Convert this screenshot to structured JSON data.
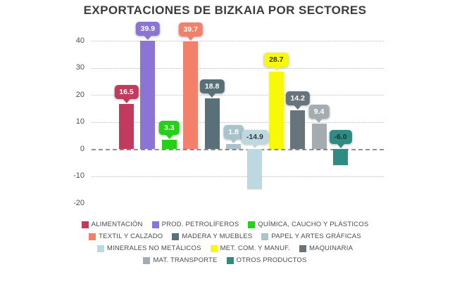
{
  "title": "EXPORTACIONES DE BIZKAIA POR SECTORES",
  "chart_data": {
    "type": "bar",
    "title": "EXPORTACIONES DE BIZKAIA POR SECTORES",
    "xlabel": "",
    "ylabel": "",
    "ylim": [
      -20,
      40
    ],
    "grid": "horizontal-dotted",
    "legend_position": "bottom",
    "yticks": [
      {
        "label": "40",
        "value": 40,
        "line": true
      },
      {
        "label": "30",
        "value": 30,
        "line": true
      },
      {
        "label": "20",
        "value": 20,
        "line": true
      },
      {
        "label": "10",
        "value": 10,
        "line": true
      },
      {
        "label": "0",
        "value": 0,
        "line": true
      },
      {
        "label": "-10",
        "value": -10,
        "line": true
      },
      {
        "label": "-20",
        "value": -20,
        "line": false
      }
    ],
    "series": [
      {
        "name": "ALIMENTACIÓN",
        "value": 16.5,
        "label": "16.5",
        "color": "#c23b5e",
        "label_text_color": "#ffffff",
        "legend_row": 0
      },
      {
        "name": "PROD. PETROLÍFEROS",
        "value": 39.9,
        "label": "39.9",
        "color": "#8a74d6",
        "label_text_color": "#ffffff",
        "legend_row": 0
      },
      {
        "name": "QUÍMICA, CAUCHO Y PLÁSTICOS",
        "value": 3.3,
        "label": "3.3",
        "color": "#25d116",
        "label_text_color": "#ffffff",
        "legend_row": 0
      },
      {
        "name": "TEXTIL Y CALZADO",
        "value": 39.7,
        "label": "39.7",
        "color": "#f3806a",
        "label_text_color": "#ffffff",
        "legend_row": 1
      },
      {
        "name": "MADERA Y MUEBLES",
        "value": 18.8,
        "label": "18.8",
        "color": "#587179",
        "label_text_color": "#ffffff",
        "legend_row": 1
      },
      {
        "name": "PAPEL Y ARTES GRÁFICAS",
        "value": 1.8,
        "label": "1.8",
        "color": "#a9c3cc",
        "label_text_color": "#ffffff",
        "legend_row": 1
      },
      {
        "name": "MINERALES NO METÁLICOS",
        "value": -14.9,
        "label": "-14.9",
        "color": "#bdd8e0",
        "label_text_color": "#333333",
        "legend_row": 2
      },
      {
        "name": "MET. COM. Y MANUF.",
        "value": 28.7,
        "label": "28.7",
        "color": "#f8f908",
        "label_text_color": "#333333",
        "legend_row": 2
      },
      {
        "name": "MAQUINARIA",
        "value": 14.2,
        "label": "14.2",
        "color": "#68747b",
        "label_text_color": "#ffffff",
        "legend_row": 2
      },
      {
        "name": "MAT. TRANSPORTE",
        "value": 9.4,
        "label": "9.4",
        "color": "#a3acb0",
        "label_text_color": "#ffffff",
        "legend_row": 3
      },
      {
        "name": "OTROS PRODUCTOS",
        "value": -6.0,
        "label": "-6.0",
        "color": "#2f8c83",
        "label_text_color": "#17332f",
        "legend_row": 3
      }
    ]
  }
}
